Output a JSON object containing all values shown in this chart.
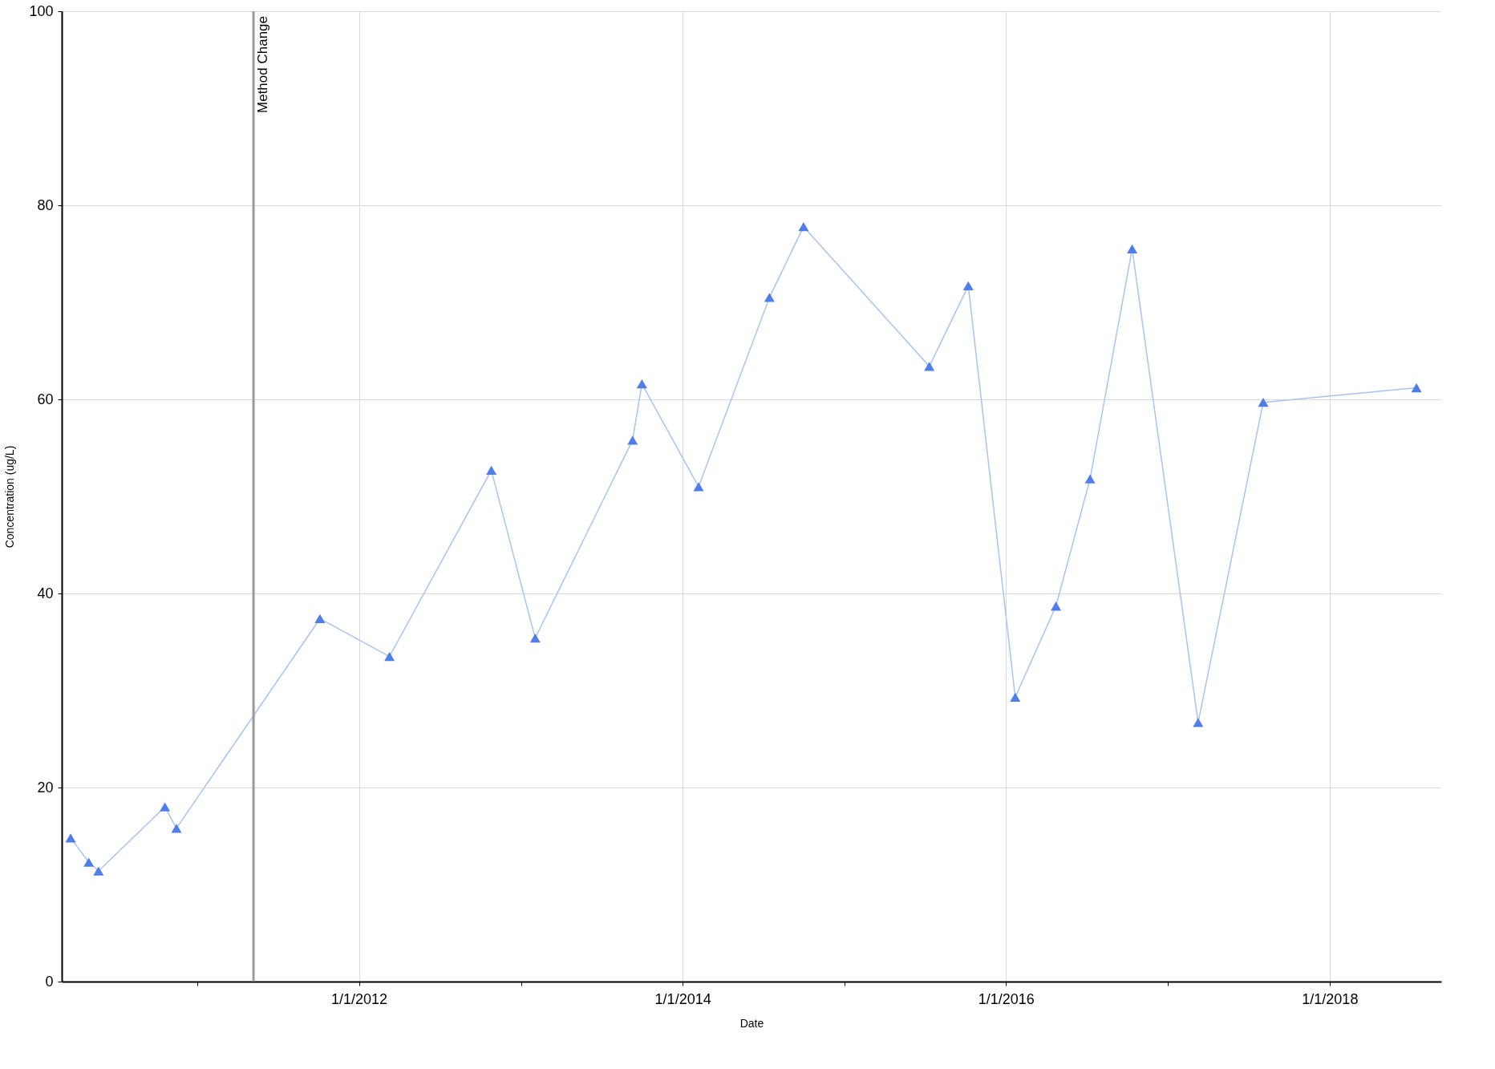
{
  "chart_data": {
    "type": "line",
    "xlabel": "Date",
    "ylabel": "Concentration (ug/L)",
    "x": [
      "2010-03-21",
      "2010-05-01",
      "2010-05-23",
      "2010-10-20",
      "2010-11-15",
      "2011-10-05",
      "2012-03-10",
      "2012-10-26",
      "2013-02-02",
      "2013-09-10",
      "2013-10-01",
      "2014-02-06",
      "2014-07-16",
      "2014-10-01",
      "2015-07-12",
      "2015-10-08",
      "2016-01-22",
      "2016-04-23",
      "2016-07-09",
      "2016-10-12",
      "2017-03-10",
      "2017-08-04",
      "2018-07-16"
    ],
    "series": [
      {
        "color": "#4f7ee8",
        "values": [
          14.8,
          12.3,
          11.4,
          18.0,
          15.8,
          37.4,
          33.5,
          52.7,
          35.4,
          55.8,
          61.6,
          51.0,
          70.5,
          77.8,
          63.4,
          71.7,
          29.3,
          38.7,
          51.8,
          75.5,
          26.7,
          59.7,
          61.2
        ]
      }
    ],
    "marker": "triangle",
    "grid": true,
    "xlim": [
      "2010-03-01",
      "2018-09-10"
    ],
    "xticks": [
      {
        "value": "2011-01-01",
        "label": null
      },
      {
        "value": "2012-01-01",
        "label": "1/1/2012"
      },
      {
        "value": "2013-01-01",
        "label": null
      },
      {
        "value": "2014-01-01",
        "label": "1/1/2014"
      },
      {
        "value": "2015-01-01",
        "label": null
      },
      {
        "value": "2016-01-01",
        "label": "1/1/2016"
      },
      {
        "value": "2017-01-01",
        "label": null
      },
      {
        "value": "2018-01-01",
        "label": "1/1/2018"
      }
    ],
    "ylim": [
      0,
      100
    ],
    "yticks": [
      0,
      20,
      40,
      60,
      80,
      100
    ],
    "ref_lines": [
      {
        "axis": "x",
        "value": "2011-05-08",
        "label": "Method Change",
        "color": "#999999"
      }
    ]
  }
}
